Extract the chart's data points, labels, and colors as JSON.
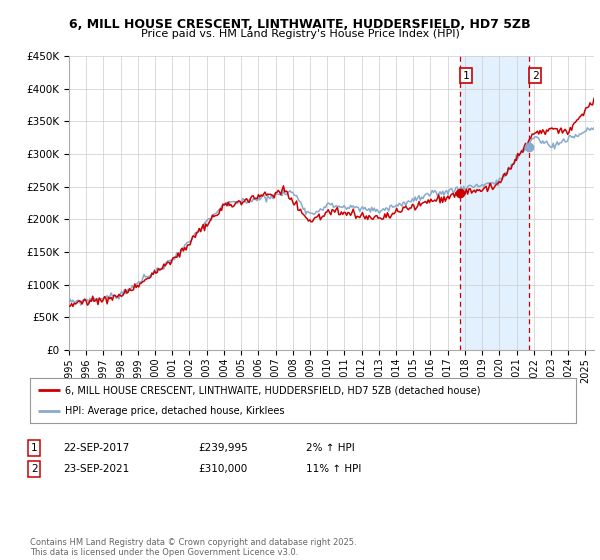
{
  "title_line1": "6, MILL HOUSE CRESCENT, LINTHWAITE, HUDDERSFIELD, HD7 5ZB",
  "title_line2": "Price paid vs. HM Land Registry's House Price Index (HPI)",
  "legend_label1": "6, MILL HOUSE CRESCENT, LINTHWAITE, HUDDERSFIELD, HD7 5ZB (detached house)",
  "legend_label2": "HPI: Average price, detached house, Kirklees",
  "annotation_note": "Contains HM Land Registry data © Crown copyright and database right 2025.\nThis data is licensed under the Open Government Licence v3.0.",
  "point1_date": "22-SEP-2017",
  "point1_price": "£239,995",
  "point1_hpi": "2% ↑ HPI",
  "point1_x": 2017.73,
  "point1_y": 239995,
  "point2_date": "23-SEP-2021",
  "point2_price": "£310,000",
  "point2_hpi": "11% ↑ HPI",
  "point2_x": 2021.73,
  "point2_y": 310000,
  "vline1_x": 2017.73,
  "vline2_x": 2021.73,
  "shade_color": "#ddeeff",
  "red_color": "#cc0000",
  "blue_color": "#88aacc",
  "ylim": [
    0,
    450000
  ],
  "yticks": [
    0,
    50000,
    100000,
    150000,
    200000,
    250000,
    300000,
    350000,
    400000,
    450000
  ],
  "xlim_start": 1995,
  "xlim_end": 2025.5,
  "background_color": "#ffffff",
  "grid_color": "#cccccc",
  "hpi_seed": 42,
  "prop_seed": 99
}
